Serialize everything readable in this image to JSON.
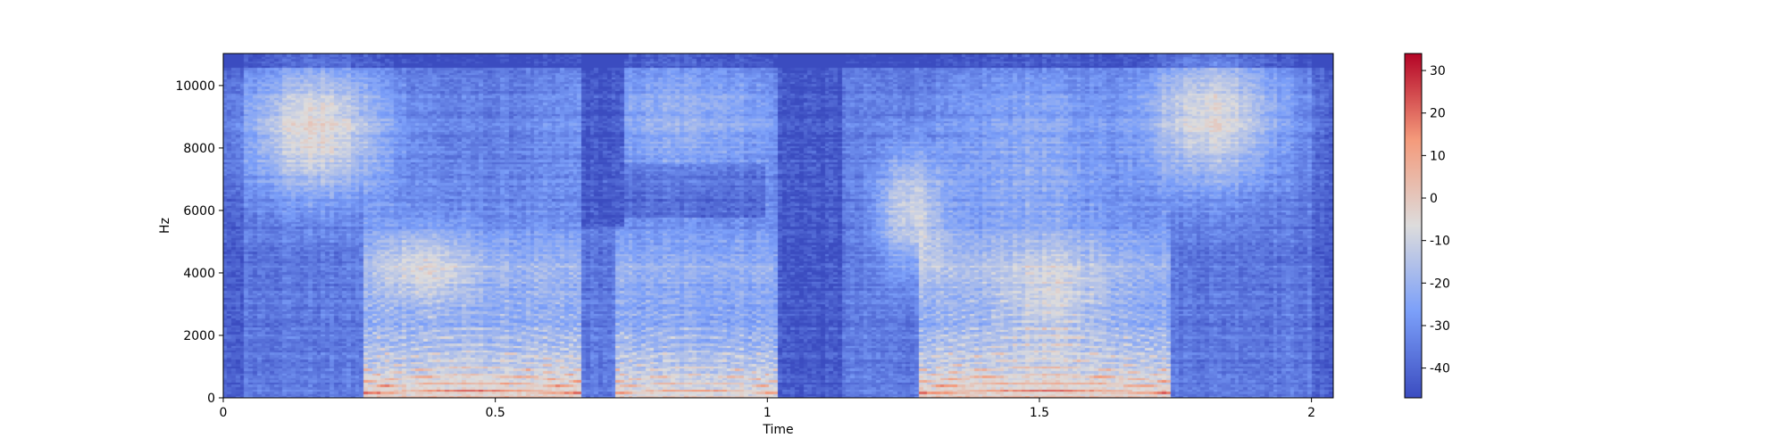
{
  "chart_data": {
    "type": "heatmap",
    "title": "",
    "xlabel": "Time",
    "ylabel": "Hz",
    "xlim": [
      0,
      2.04
    ],
    "ylim": [
      0,
      11025
    ],
    "x_ticks": [
      {
        "value": 0,
        "label": "0"
      },
      {
        "value": 0.5,
        "label": "0.5"
      },
      {
        "value": 1,
        "label": "1"
      },
      {
        "value": 1.5,
        "label": "1.5"
      },
      {
        "value": 2,
        "label": "2"
      }
    ],
    "y_ticks": [
      {
        "value": 0,
        "label": "0"
      },
      {
        "value": 2000,
        "label": "2000"
      },
      {
        "value": 4000,
        "label": "4000"
      },
      {
        "value": 6000,
        "label": "6000"
      },
      {
        "value": 8000,
        "label": "8000"
      },
      {
        "value": 10000,
        "label": "10000"
      }
    ],
    "colormap": "coolwarm",
    "colorbar": {
      "range": [
        -47,
        34
      ],
      "ticks": [
        {
          "value": 30,
          "label": "30"
        },
        {
          "value": 20,
          "label": "20"
        },
        {
          "value": 10,
          "label": "10"
        },
        {
          "value": 0,
          "label": "0"
        },
        {
          "value": -10,
          "label": "-10"
        },
        {
          "value": -20,
          "label": "-20"
        },
        {
          "value": -30,
          "label": "-30"
        },
        {
          "value": -40,
          "label": "-40"
        }
      ]
    },
    "grid": false
  }
}
